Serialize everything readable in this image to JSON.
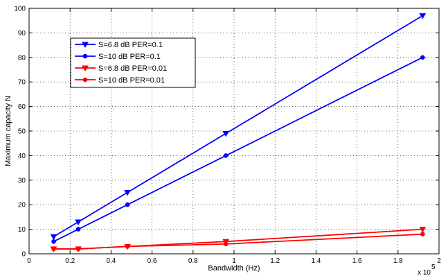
{
  "chart_data": {
    "type": "line",
    "title": "",
    "xlabel": "Bandwidth (Hz)",
    "ylabel": "Maximum capacity N",
    "x_multiplier_label": "x 10",
    "x_multiplier_exponent": "5",
    "xlim": [
      0,
      2
    ],
    "ylim": [
      0,
      100
    ],
    "x_ticks": [
      "0",
      "0.2",
      "0.4",
      "0.6",
      "0.8",
      "1",
      "1.2",
      "1.4",
      "1.6",
      "1.8",
      "2"
    ],
    "y_ticks": [
      "0",
      "10",
      "20",
      "30",
      "40",
      "50",
      "60",
      "70",
      "80",
      "90",
      "100"
    ],
    "x_tick_values": [
      0,
      0.2,
      0.4,
      0.6,
      0.8,
      1.0,
      1.2,
      1.4,
      1.6,
      1.8,
      2.0
    ],
    "y_tick_values": [
      0,
      10,
      20,
      30,
      40,
      50,
      60,
      70,
      80,
      90,
      100
    ],
    "grid": "dotted",
    "legend_position": "top-left",
    "x": [
      0.12,
      0.24,
      0.48,
      0.96,
      1.92
    ],
    "series": [
      {
        "name": "S=6.8 dB  PER=0.1",
        "values": [
          7,
          13,
          25,
          49,
          97
        ],
        "color": "#0000ff",
        "marker": "triangle-down"
      },
      {
        "name": "S=10 dB  PER=0.1",
        "values": [
          5,
          10,
          20,
          40,
          80
        ],
        "color": "#0000ff",
        "marker": "circle"
      },
      {
        "name": "S=6.8 dB  PER=0.01",
        "values": [
          2,
          2,
          3,
          5,
          10
        ],
        "color": "#ff0000",
        "marker": "triangle-down"
      },
      {
        "name": "S=10 dB  PER=0.01",
        "values": [
          2,
          2,
          3,
          4,
          8
        ],
        "color": "#ff0000",
        "marker": "circle"
      }
    ]
  }
}
